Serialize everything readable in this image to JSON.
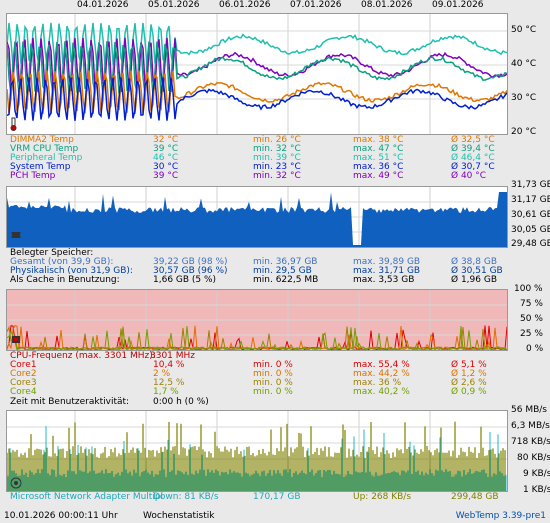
{
  "dates": [
    "04.01.2026",
    "05.01.2026",
    "06.01.2026",
    "07.01.2026",
    "08.01.2026",
    "09.01.2026"
  ],
  "temperature": {
    "axis": [
      "50 °C",
      "40 °C",
      "30 °C",
      "20 °C"
    ],
    "colors": {
      "dimm": "#e07800",
      "vrm": "#0aa080",
      "peripheral": "#20c0b0",
      "system": "#0020d0",
      "pch": "#8000c0"
    },
    "rows": [
      {
        "label": "DIMMA2 Temp",
        "cur": "32 °C",
        "min": "min. 26 °C",
        "max": "max. 38 °C",
        "avg": "Ø 32,5 °C",
        "color": "#e07800"
      },
      {
        "label": "VRM CPU Temp",
        "cur": "39 °C",
        "min": "min. 32 °C",
        "max": "max. 47 °C",
        "avg": "Ø 39,4 °C",
        "color": "#0aa080"
      },
      {
        "label": "Peripheral Temp",
        "cur": "46 °C",
        "min": "min. 39 °C",
        "max": "max. 51 °C",
        "avg": "Ø 46,4 °C",
        "color": "#20c0b0"
      },
      {
        "label": "System Temp",
        "cur": "30 °C",
        "min": "min. 23 °C",
        "max": "max. 36 °C",
        "avg": "Ø 30,7 °C",
        "color": "#0020d0"
      },
      {
        "label": "PCH Temp",
        "cur": "39 °C",
        "min": "min. 32 °C",
        "max": "max. 49 °C",
        "avg": "Ø 40 °C",
        "color": "#8000c0"
      }
    ]
  },
  "memory": {
    "axis": [
      "31,73 GB",
      "31,17 GB",
      "30,61 GB",
      "30,05 GB",
      "29,48 GB"
    ],
    "header": "Belegter Speicher:",
    "fill": "#1060c0",
    "rows": [
      {
        "label": "Gesamt (von 39,9 GB):",
        "cur": "39,22 GB (98 %)",
        "min": "min. 36,97 GB",
        "max": "max. 39,89 GB",
        "avg": "Ø 38,8 GB",
        "color": "#4070c0"
      },
      {
        "label": "Physikalisch (von 31,9 GB):",
        "cur": "30,57 GB (96 %)",
        "min": "min. 29,5 GB",
        "max": "max. 31,71 GB",
        "avg": "Ø 30,51 GB",
        "color": "#0040a0"
      },
      {
        "label": "Als Cache in Benutzung:",
        "cur": "1,66 GB (5 %)",
        "min": "min. 622,5 MB",
        "max": "max. 3,53 GB",
        "avg": "Ø 1,96 GB",
        "color": "#000000"
      }
    ]
  },
  "cpu": {
    "axis": [
      "100 %",
      "75 %",
      "50 %",
      "25 %",
      "0 %"
    ],
    "freq_label": "CPU-Frequenz (max. 3301 MHz):",
    "freq_value": "3301 MHz",
    "rows": [
      {
        "label": "Core1",
        "cur": "10,4 %",
        "min": "min. 0 %",
        "max": "max. 55,4 %",
        "avg": "Ø 5,1 %",
        "color": "#e00000"
      },
      {
        "label": "Core2",
        "cur": "2 %",
        "min": "min. 0 %",
        "max": "max. 44,2 %",
        "avg": "Ø 1,2 %",
        "color": "#e07000"
      },
      {
        "label": "Core3",
        "cur": "12,5 %",
        "min": "min. 0 %",
        "max": "max. 36 %",
        "avg": "Ø 2,6 %",
        "color": "#a08000"
      },
      {
        "label": "Core4",
        "cur": "1,7 %",
        "min": "min. 0 %",
        "max": "max. 40,2 %",
        "avg": "Ø 0,9 %",
        "color": "#70a000"
      }
    ],
    "idle_label": "Zeit mit Benutzeraktivität:",
    "idle_value": "0:00 h (0 %)"
  },
  "network": {
    "axis": [
      "56 MB/s",
      "6,3 MB/s",
      "718 KB/s",
      "80 KB/s",
      "9 KB/s",
      "1 KB/s"
    ],
    "adapter": "Microsoft Network Adapter Multipl",
    "down": "Down: 81 KB/s",
    "down_total": "170,17 GB",
    "up": "Up: 268 KB/s",
    "up_total": "299,48 GB",
    "down_color": "#20b8c8",
    "up_color": "#808000"
  },
  "footer": {
    "timestamp": "10.01.2026 00:00:11 Uhr",
    "mode": "Wochenstatistik",
    "app": "WebTemp 3.39-pre1"
  }
}
